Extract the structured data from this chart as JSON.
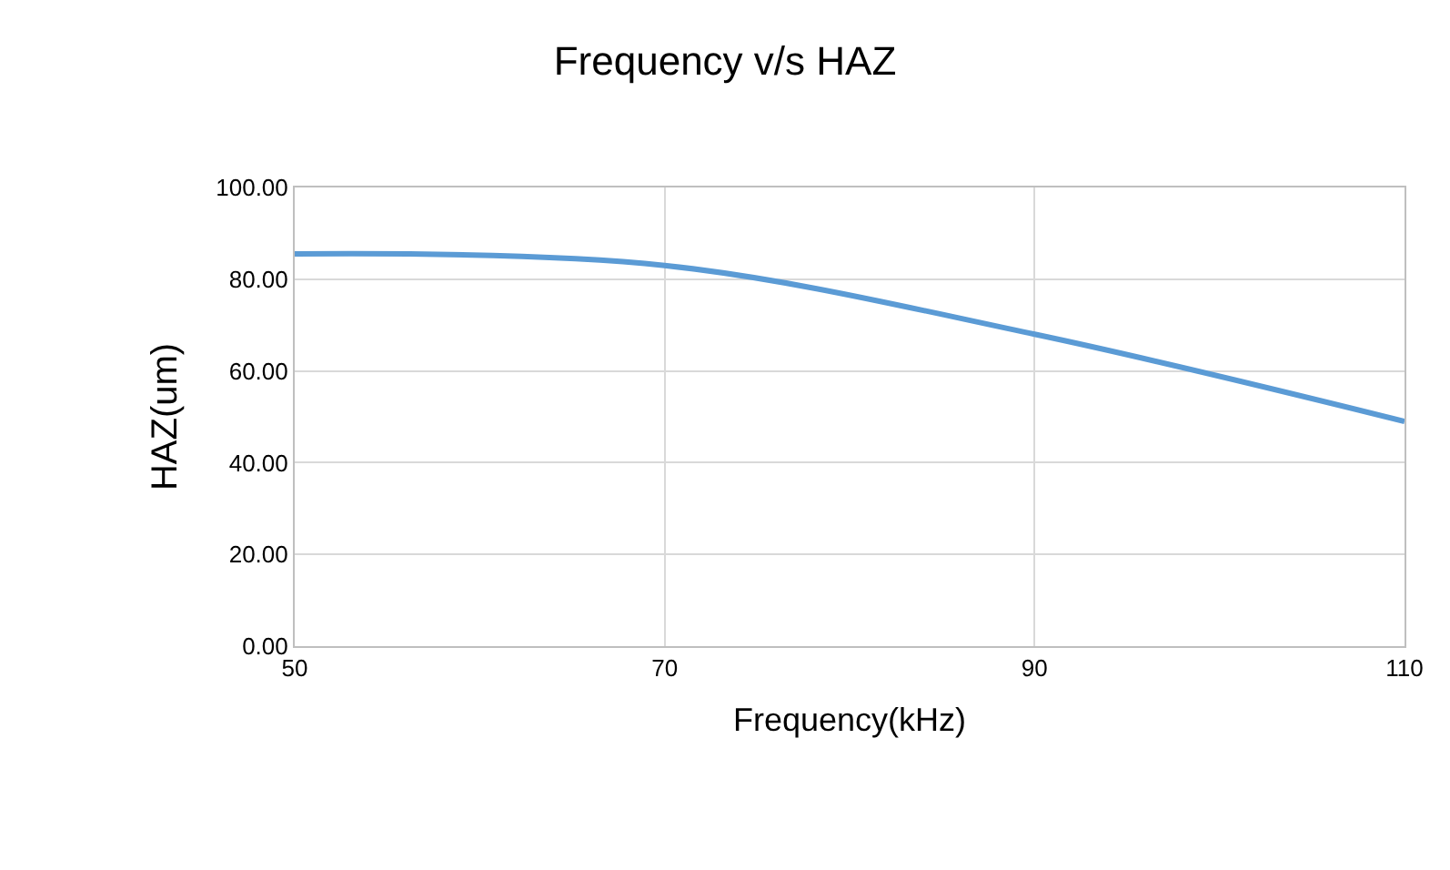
{
  "chart_data": {
    "type": "line",
    "title": "Frequency v/s HAZ",
    "xlabel": "Frequency(kHz)",
    "ylabel": "HAZ(um)",
    "x": [
      50,
      70,
      90,
      110
    ],
    "series": [
      {
        "color": "#5b9bd5",
        "values": [
          85.5,
          83,
          68,
          49
        ]
      }
    ],
    "xlim": [
      50,
      110
    ],
    "xticks": [
      50,
      70,
      90,
      110
    ],
    "ylim": [
      0,
      100
    ],
    "yticks": [
      {
        "value": 0,
        "label": "0.00"
      },
      {
        "value": 20,
        "label": "20.00"
      },
      {
        "value": 40,
        "label": "40.00"
      },
      {
        "value": 60,
        "label": "60.00"
      },
      {
        "value": 80,
        "label": "80.00"
      },
      {
        "value": 100,
        "label": "100.00"
      }
    ],
    "grid": true,
    "marker": "none",
    "line_style": "solid"
  }
}
